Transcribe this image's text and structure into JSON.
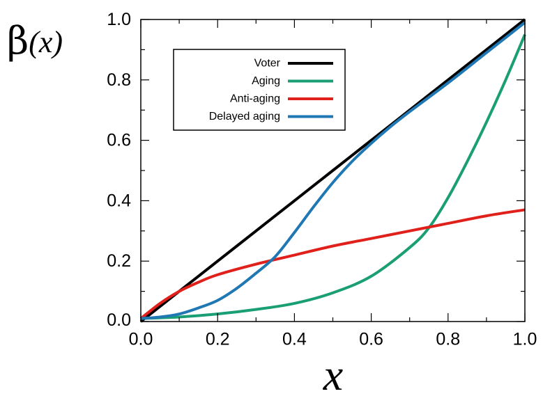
{
  "chart_data": {
    "type": "line",
    "title": "",
    "xlabel": "x",
    "ylabel": {
      "symbol": "β",
      "argument": "(x)"
    },
    "xlim": [
      0,
      1
    ],
    "ylim": [
      0,
      1
    ],
    "xticks": [
      "0.0",
      "0.2",
      "0.4",
      "0.6",
      "0.8",
      "1.0"
    ],
    "yticks": [
      "0.0",
      "0.2",
      "0.4",
      "0.6",
      "0.8",
      "1.0"
    ],
    "grid": false,
    "legend_position": "top-left",
    "series": [
      {
        "name": "Voter",
        "color": "#000000",
        "x": [
          0.0,
          0.1,
          0.2,
          0.3,
          0.4,
          0.5,
          0.6,
          0.7,
          0.8,
          0.9,
          1.0
        ],
        "y": [
          0.0,
          0.1,
          0.2,
          0.3,
          0.4,
          0.5,
          0.6,
          0.7,
          0.8,
          0.9,
          1.0
        ]
      },
      {
        "name": "Aging",
        "color": "#1a9e74",
        "x": [
          0.0,
          0.1,
          0.2,
          0.3,
          0.4,
          0.5,
          0.6,
          0.7,
          0.75,
          0.8,
          0.85,
          0.9,
          0.95,
          1.0
        ],
        "y": [
          0.01,
          0.015,
          0.025,
          0.04,
          0.06,
          0.095,
          0.15,
          0.245,
          0.31,
          0.41,
          0.53,
          0.66,
          0.8,
          0.95
        ]
      },
      {
        "name": "Anti-aging",
        "color": "#e0201b",
        "x": [
          0.0,
          0.05,
          0.1,
          0.15,
          0.2,
          0.3,
          0.4,
          0.5,
          0.6,
          0.7,
          0.8,
          0.9,
          1.0
        ],
        "y": [
          0.01,
          0.06,
          0.1,
          0.13,
          0.155,
          0.19,
          0.22,
          0.25,
          0.275,
          0.3,
          0.325,
          0.35,
          0.37
        ]
      },
      {
        "name": "Delayed aging",
        "color": "#1f78b4",
        "x": [
          0.0,
          0.05,
          0.1,
          0.15,
          0.2,
          0.25,
          0.3,
          0.35,
          0.4,
          0.45,
          0.5,
          0.55,
          0.6,
          0.65,
          0.7,
          0.8,
          0.9,
          1.0
        ],
        "y": [
          0.01,
          0.015,
          0.025,
          0.045,
          0.07,
          0.11,
          0.16,
          0.215,
          0.295,
          0.38,
          0.46,
          0.53,
          0.59,
          0.645,
          0.695,
          0.79,
          0.89,
          0.99
        ]
      }
    ]
  }
}
